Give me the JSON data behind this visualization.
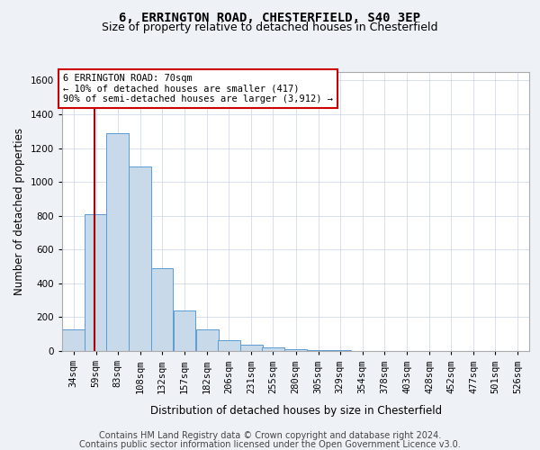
{
  "title": "6, ERRINGTON ROAD, CHESTERFIELD, S40 3EP",
  "subtitle": "Size of property relative to detached houses in Chesterfield",
  "xlabel": "Distribution of detached houses by size in Chesterfield",
  "ylabel": "Number of detached properties",
  "bin_labels": [
    "34sqm",
    "59sqm",
    "83sqm",
    "108sqm",
    "132sqm",
    "157sqm",
    "182sqm",
    "206sqm",
    "231sqm",
    "255sqm",
    "280sqm",
    "305sqm",
    "329sqm",
    "354sqm",
    "378sqm",
    "403sqm",
    "428sqm",
    "452sqm",
    "477sqm",
    "501sqm",
    "526sqm"
  ],
  "bin_left_edges": [
    34,
    59,
    83,
    108,
    132,
    157,
    182,
    206,
    231,
    255,
    280,
    305,
    329,
    354,
    378,
    403,
    428,
    452,
    477,
    501,
    526
  ],
  "bin_width": 25,
  "bar_heights": [
    130,
    810,
    1290,
    1090,
    490,
    240,
    130,
    65,
    35,
    20,
    10,
    5,
    3,
    2,
    1,
    1,
    1,
    1,
    1,
    1,
    0
  ],
  "bar_facecolor": "#c8d9ea",
  "bar_edgecolor": "#5b9bd5",
  "property_line_x": 70,
  "property_line_color": "#aa0000",
  "annotation_text": "6 ERRINGTON ROAD: 70sqm\n← 10% of detached houses are smaller (417)\n90% of semi-detached houses are larger (3,912) →",
  "annotation_box_color": "#cc0000",
  "ylim": [
    0,
    1650
  ],
  "yticks": [
    0,
    200,
    400,
    600,
    800,
    1000,
    1200,
    1400,
    1600
  ],
  "footer_line1": "Contains HM Land Registry data © Crown copyright and database right 2024.",
  "footer_line2": "Contains public sector information licensed under the Open Government Licence v3.0.",
  "background_color": "#eef2f7",
  "plot_background_color": "#ffffff",
  "grid_color": "#c8d4e3",
  "title_fontsize": 10,
  "subtitle_fontsize": 9,
  "axis_label_fontsize": 8.5,
  "tick_fontsize": 7.5,
  "annotation_fontsize": 7.5,
  "footer_fontsize": 7
}
